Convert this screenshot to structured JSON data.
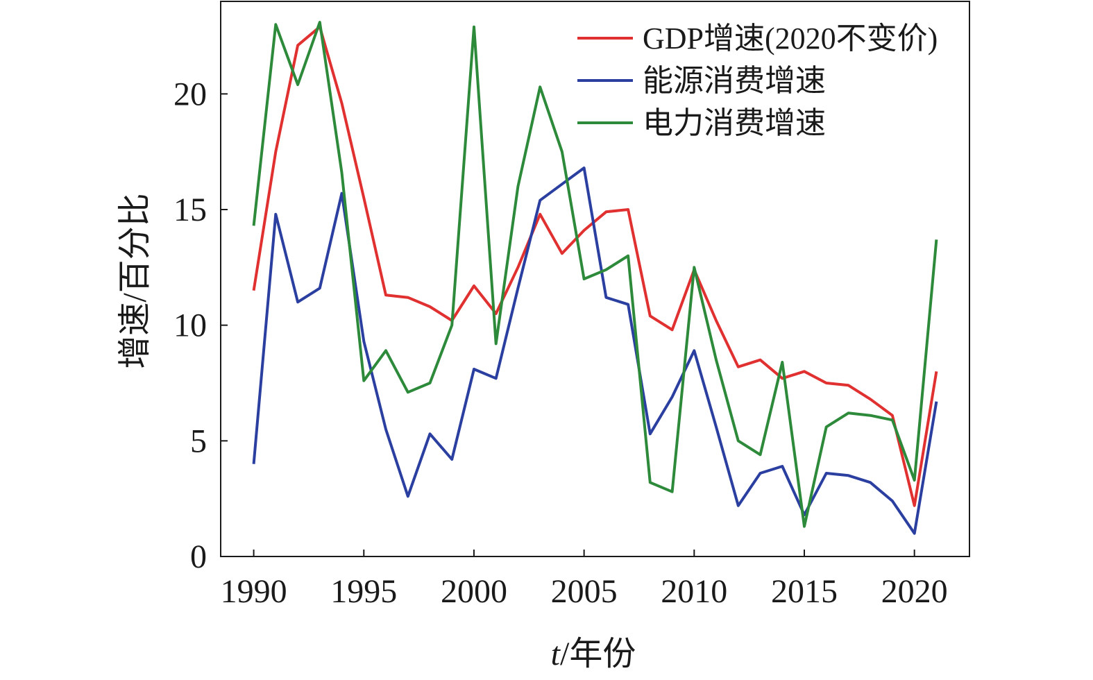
{
  "chart_data": {
    "type": "line",
    "title": "",
    "xlabel_italic": "t",
    "xlabel_rest": "/年份",
    "ylabel": "增速/百分比",
    "xlim": [
      1988.5,
      2022.5
    ],
    "ylim": [
      0,
      24
    ],
    "x_ticks": [
      1990,
      1995,
      2000,
      2005,
      2010,
      2015,
      2020
    ],
    "y_ticks": [
      0,
      5,
      10,
      15,
      20
    ],
    "grid": false,
    "legend_position": "top-right",
    "x": [
      1990,
      1991,
      1992,
      1993,
      1994,
      1995,
      1996,
      1997,
      1998,
      1999,
      2000,
      2001,
      2002,
      2003,
      2004,
      2005,
      2006,
      2007,
      2008,
      2009,
      2010,
      2011,
      2012,
      2013,
      2014,
      2015,
      2016,
      2017,
      2018,
      2019,
      2020,
      2021
    ],
    "series": [
      {
        "name": "GDP增速(2020不变价)",
        "color": "#e03030",
        "values": [
          11.5,
          17.5,
          22.1,
          22.9,
          19.6,
          15.5,
          11.3,
          11.2,
          10.8,
          10.2,
          11.7,
          10.5,
          12.5,
          14.8,
          13.1,
          14.1,
          14.9,
          15.0,
          10.4,
          9.8,
          12.4,
          10.2,
          8.2,
          8.5,
          7.7,
          8.0,
          7.5,
          7.4,
          6.8,
          6.1,
          2.2,
          8.0
        ]
      },
      {
        "name": "能源消费增速",
        "color": "#2a3f9f",
        "values": [
          4.0,
          14.8,
          11.0,
          11.6,
          15.7,
          9.3,
          5.5,
          2.6,
          5.3,
          4.2,
          8.1,
          7.7,
          11.6,
          15.4,
          16.1,
          16.8,
          11.2,
          10.9,
          5.3,
          6.9,
          8.9,
          5.6,
          2.2,
          3.6,
          3.9,
          1.8,
          3.6,
          3.5,
          3.2,
          2.4,
          1.0,
          6.7
        ]
      },
      {
        "name": "电力消费增速",
        "color": "#2e8a3b",
        "values": [
          14.3,
          23.0,
          20.4,
          23.1,
          16.6,
          7.6,
          8.9,
          7.1,
          7.5,
          10.0,
          22.9,
          9.2,
          16.0,
          20.3,
          17.5,
          12.0,
          12.4,
          13.0,
          3.2,
          2.8,
          12.5,
          8.5,
          5.0,
          4.4,
          8.4,
          1.3,
          5.6,
          6.2,
          6.1,
          5.9,
          3.3,
          13.7
        ]
      }
    ]
  }
}
